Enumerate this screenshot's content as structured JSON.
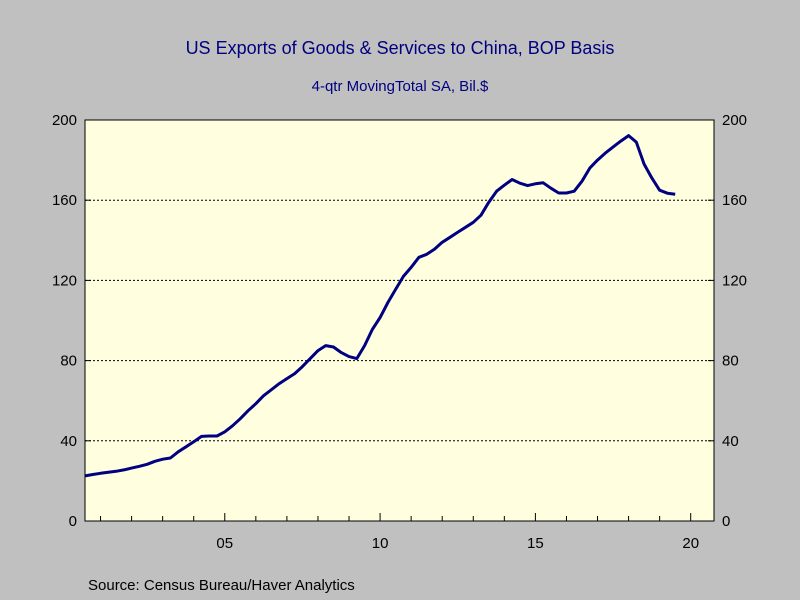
{
  "header": {
    "title": "US Exports of Goods & Services to China, BOP Basis",
    "subtitle": "4-qtr MovingTotal     SA, Bil.$"
  },
  "footer": {
    "source": "Source:  Census Bureau/Haver Analytics"
  },
  "chart_data": {
    "type": "line",
    "title": "US Exports of Goods & Services to China, BOP Basis",
    "subtitle": "4-qtr MovingTotal     SA, Bil.$",
    "xlabel": "",
    "ylabel": "",
    "xlim": [
      2000.5,
      2020.75
    ],
    "ylim": [
      0,
      200
    ],
    "x_ticks": [
      2005,
      2010,
      2015,
      2020
    ],
    "x_tick_labels": [
      "05",
      "10",
      "15",
      "20"
    ],
    "y_ticks": [
      0,
      40,
      80,
      120,
      160,
      200
    ],
    "y_tick_labels": [
      "0",
      "40",
      "80",
      "120",
      "160",
      "200"
    ],
    "grid": "horizontal dotted",
    "series_color": "#000080",
    "plot_background": "#ffffe0",
    "series": [
      {
        "x": [
          2000.5,
          2000.75,
          2001.0,
          2001.25,
          2001.5,
          2001.75,
          2002.0,
          2002.25,
          2002.5,
          2002.75,
          2003.0,
          2003.25,
          2003.5,
          2003.75,
          2004.0,
          2004.25,
          2004.5,
          2004.75,
          2005.0,
          2005.25,
          2005.5,
          2005.75,
          2006.0,
          2006.25,
          2006.5,
          2006.75,
          2007.0,
          2007.25,
          2007.5,
          2007.75,
          2008.0,
          2008.25,
          2008.5,
          2008.75,
          2009.0,
          2009.25,
          2009.5,
          2009.75,
          2010.0,
          2010.25,
          2010.5,
          2010.75,
          2011.0,
          2011.25,
          2011.5,
          2011.75,
          2012.0,
          2012.25,
          2012.5,
          2012.75,
          2013.0,
          2013.25,
          2013.5,
          2013.75,
          2014.0,
          2014.25,
          2014.5,
          2014.75,
          2015.0,
          2015.25,
          2015.5,
          2015.75,
          2016.0,
          2016.25,
          2016.5,
          2016.75,
          2017.0,
          2017.25,
          2017.5,
          2017.75,
          2018.0,
          2018.25,
          2018.5,
          2018.75,
          2019.0,
          2019.25,
          2019.5
        ],
        "values": [
          22.5,
          23.2,
          23.8,
          24.3,
          24.8,
          25.5,
          26.4,
          27.3,
          28.3,
          29.8,
          30.8,
          31.4,
          34.5,
          37.0,
          39.5,
          42.2,
          42.4,
          42.4,
          44.5,
          47.5,
          51.0,
          55.0,
          58.5,
          62.5,
          65.5,
          68.5,
          71.0,
          73.5,
          77.0,
          81.0,
          85.0,
          87.5,
          86.8,
          84.0,
          82.0,
          81.0,
          87.5,
          95.5,
          101.5,
          109.0,
          115.5,
          122.0,
          126.5,
          131.5,
          133.0,
          135.5,
          139.0,
          141.5,
          144.0,
          146.5,
          149.0,
          152.5,
          159.0,
          164.5,
          167.5,
          170.3,
          168.5,
          167.3,
          168.2,
          168.7,
          166.0,
          163.6,
          163.6,
          164.5,
          169.5,
          176.0,
          180.0,
          183.5,
          186.5,
          189.5,
          192.2,
          189.0,
          178.0,
          171.0,
          165.0,
          163.5,
          163.0
        ]
      }
    ]
  }
}
